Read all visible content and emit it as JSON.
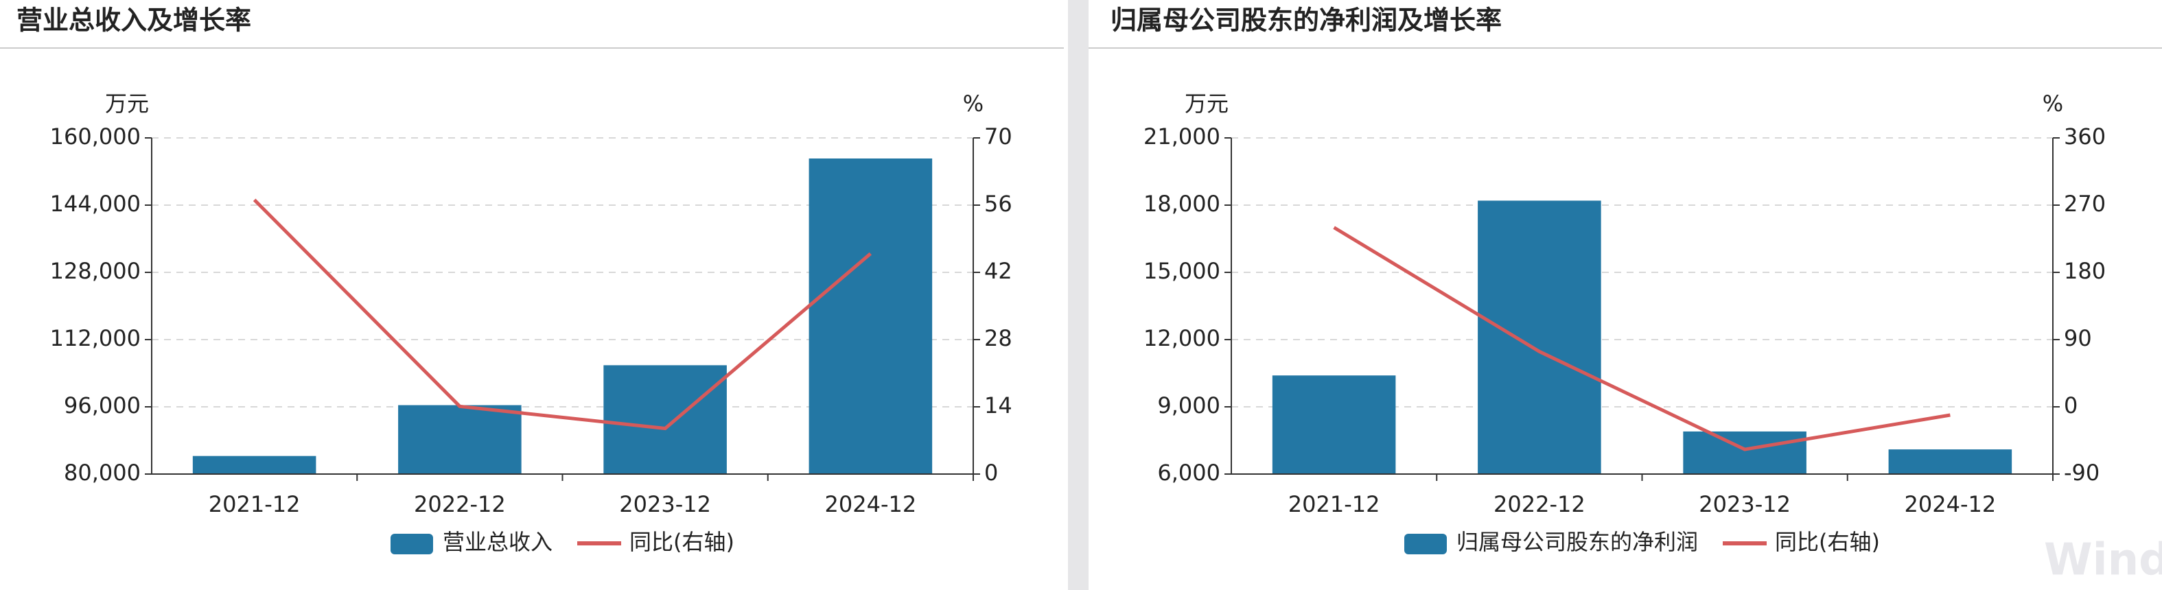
{
  "chart_data": [
    {
      "type": "bar",
      "title": "营业总收入及增长率",
      "y_unit": "万元",
      "y2_unit": "%",
      "categories": [
        "2021-12",
        "2022-12",
        "2023-12",
        "2024-12"
      ],
      "series": [
        {
          "name": "营业总收入",
          "color": "#2377a4",
          "values": [
            84300,
            96400,
            105900,
            155100
          ]
        },
        {
          "name": "同比(右轴)",
          "color": "#d65a5a",
          "axis": "y2",
          "type": "line",
          "values": [
            57.1,
            14.1,
            9.5,
            45.9
          ]
        }
      ],
      "ylim": [
        80000,
        160000
      ],
      "yticks": [
        {
          "value": 80000,
          "label": "80,000"
        },
        {
          "value": 96000,
          "label": "96,000"
        },
        {
          "value": 112000,
          "label": "112,000"
        },
        {
          "value": 128000,
          "label": "128,000"
        },
        {
          "value": 144000,
          "label": "144,000"
        },
        {
          "value": 160000,
          "label": "160,000"
        }
      ],
      "y2lim": [
        0,
        70
      ],
      "y2ticks": [
        0,
        14,
        28,
        42,
        56,
        70
      ],
      "grid": true
    },
    {
      "type": "bar",
      "title": "归属母公司股东的净利润及增长率",
      "y_unit": "万元",
      "y2_unit": "%",
      "categories": [
        "2021-12",
        "2022-12",
        "2023-12",
        "2024-12"
      ],
      "series": [
        {
          "name": "归属母公司股东的净利润",
          "color": "#2377a4",
          "values": [
            10400,
            18200,
            7900,
            7100
          ]
        },
        {
          "name": "同比(右轴)",
          "color": "#d65a5a",
          "axis": "y2",
          "type": "line",
          "values": [
            240,
            74,
            -57,
            -11
          ]
        }
      ],
      "ylim": [
        6000,
        21000
      ],
      "yticks": [
        {
          "value": 6000,
          "label": "6,000"
        },
        {
          "value": 9000,
          "label": "9,000"
        },
        {
          "value": 12000,
          "label": "12,000"
        },
        {
          "value": 15000,
          "label": "15,000"
        },
        {
          "value": 18000,
          "label": "18,000"
        },
        {
          "value": 21000,
          "label": "21,000"
        }
      ],
      "y2lim": [
        -90,
        360
      ],
      "y2ticks": [
        -90,
        0,
        90,
        180,
        270,
        360
      ],
      "grid": true
    }
  ],
  "watermark": "Wind"
}
